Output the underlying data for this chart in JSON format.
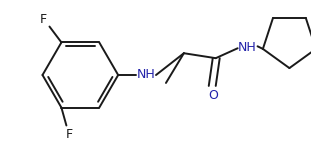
{
  "background_color": "#ffffff",
  "line_color": "#1a1a1a",
  "text_color": "#1a1a1a",
  "nh_color": "#2222aa",
  "o_color": "#2222aa",
  "line_width": 1.4,
  "font_size": 8.5,
  "figsize": [
    3.12,
    1.55
  ],
  "dpi": 100,
  "xlim": [
    0,
    312
  ],
  "ylim": [
    0,
    155
  ]
}
